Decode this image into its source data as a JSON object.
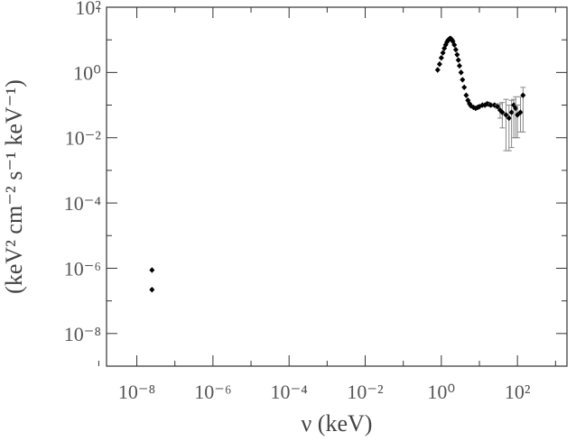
{
  "chart_data": {
    "type": "scatter",
    "xlabel": "ν (keV)",
    "ylabel": "(keV² cm⁻² s⁻¹ keV⁻¹)",
    "log_x": true,
    "log_y": true,
    "xlim": [
      1.6e-09,
      2000
    ],
    "ylim": [
      1e-09,
      100
    ],
    "xticks": [
      {
        "value": 1e-08,
        "label": "10⁻⁸"
      },
      {
        "value": 1e-06,
        "label": "10⁻⁶"
      },
      {
        "value": 0.0001,
        "label": "10⁻⁴"
      },
      {
        "value": 0.01,
        "label": "10⁻²"
      },
      {
        "value": 1,
        "label": "10⁰"
      },
      {
        "value": 100,
        "label": "10²"
      }
    ],
    "xminor": [
      1e-09,
      1e-07,
      1e-05,
      0.001,
      0.1,
      10,
      1000
    ],
    "yticks": [
      {
        "value": 1e-08,
        "label": "10⁻⁸"
      },
      {
        "value": 1e-06,
        "label": "10⁻⁶"
      },
      {
        "value": 0.0001,
        "label": "10⁻⁴"
      },
      {
        "value": 0.01,
        "label": "10⁻²"
      },
      {
        "value": 1,
        "label": "10⁰"
      },
      {
        "value": 100,
        "label": "10²"
      }
    ],
    "yminor": [
      1e-09,
      1e-07,
      1e-05,
      0.001,
      0.1,
      10
    ],
    "color": "#000000",
    "x": [
      2.5e-08,
      2.5e-08,
      0.8,
      0.9,
      1.0,
      1.1,
      1.2,
      1.3,
      1.4,
      1.5,
      1.6,
      1.7,
      1.8,
      1.9,
      2.0,
      2.2,
      2.4,
      2.6,
      2.8,
      3.0,
      3.3,
      3.6,
      4.0,
      4.5,
      5.0,
      5.5,
      6,
      7,
      8,
      9,
      10,
      12,
      14,
      16,
      18,
      20,
      25,
      30,
      35,
      40,
      50,
      60,
      70,
      80,
      90,
      100,
      120,
      140
    ],
    "values": [
      8.8e-07,
      2.2e-07,
      1.2,
      1.8,
      2.8,
      4.0,
      5.5,
      7,
      8.5,
      9.8,
      10.5,
      11,
      10.8,
      10,
      9,
      7,
      5,
      3.5,
      2.4,
      1.6,
      1.0,
      0.6,
      0.35,
      0.2,
      0.14,
      0.11,
      0.095,
      0.085,
      0.08,
      0.085,
      0.09,
      0.1,
      0.1,
      0.11,
      0.105,
      0.1,
      0.1,
      0.09,
      0.07,
      0.06,
      0.05,
      0.04,
      0.06,
      0.1,
      0.08,
      0.05,
      0.06,
      0.2
    ],
    "err_low": [
      0,
      0,
      0,
      0,
      0,
      0,
      0,
      0,
      0,
      0,
      0,
      0,
      0,
      0,
      0,
      0,
      0,
      0,
      0,
      0,
      0,
      0,
      0,
      0,
      0,
      0,
      0,
      0,
      0,
      0,
      0,
      0,
      0,
      0,
      0,
      0.01,
      0.01,
      0.01,
      0.03,
      0.04,
      0.046,
      0.036,
      0.055,
      0.09,
      0.07,
      0.04,
      0.045,
      0.185
    ],
    "err_high": [
      0,
      0,
      0,
      0,
      0,
      0,
      0,
      0,
      0,
      0,
      0,
      0,
      0,
      0,
      0,
      0,
      0,
      0,
      0,
      0,
      0,
      0,
      0,
      0,
      0,
      0,
      0,
      0,
      0,
      0,
      0,
      0,
      0,
      0,
      0,
      0.01,
      0.01,
      0.01,
      0.04,
      0.06,
      0.1,
      0.06,
      0.08,
      0.05,
      0.1,
      0.05,
      0.12,
      0.15
    ]
  }
}
